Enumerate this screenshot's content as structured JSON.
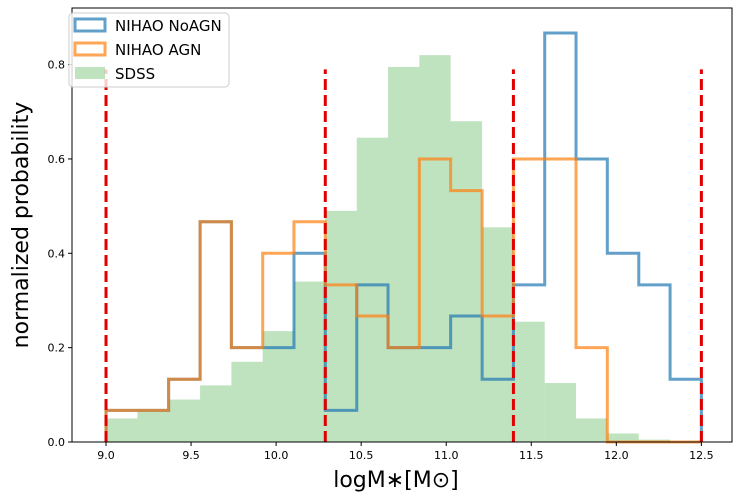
{
  "chart_data": {
    "type": "histogram",
    "xlabel": "logM∗[M⊙]",
    "ylabel": "normalized probability",
    "xlim": [
      8.8,
      12.68
    ],
    "ylim": [
      0,
      0.92
    ],
    "xticks": [
      9.0,
      9.5,
      10.0,
      10.5,
      11.0,
      11.5,
      12.0,
      12.5
    ],
    "xtick_labels": [
      "9.0",
      "9.5",
      "10.0",
      "10.5",
      "11.0",
      "11.5",
      "12.0",
      "12.5"
    ],
    "yticks": [
      0.0,
      0.2,
      0.4,
      0.6,
      0.8
    ],
    "ytick_labels": [
      "0.0",
      "0.2",
      "0.4",
      "0.6",
      "0.8"
    ],
    "legend_position": "top-left",
    "series": [
      {
        "name": "NIHAO NoAGN",
        "style": "step",
        "color": "#1f77b4",
        "edges": [
          9.0,
          9.184,
          9.368,
          9.553,
          9.737,
          9.921,
          10.105,
          10.289,
          10.474,
          10.658,
          10.842,
          11.026,
          11.211,
          11.395,
          11.579,
          11.763,
          11.947,
          12.132,
          12.316,
          12.5
        ],
        "values": [
          0.067,
          0.067,
          0.133,
          0.467,
          0.2,
          0.2,
          0.4,
          0.067,
          0.333,
          0.2,
          0.2,
          0.267,
          0.133,
          0.333,
          0.867,
          0.6,
          0.4,
          0.333,
          0.133
        ]
      },
      {
        "name": "NIHAO AGN",
        "style": "step",
        "color": "#ff7f0e",
        "edges": [
          9.0,
          9.184,
          9.368,
          9.553,
          9.737,
          9.921,
          10.105,
          10.289,
          10.474,
          10.658,
          10.842,
          11.026,
          11.211,
          11.395,
          11.579,
          11.763,
          11.947,
          12.132,
          12.316,
          12.5
        ],
        "values": [
          0.067,
          0.067,
          0.133,
          0.467,
          0.2,
          0.4,
          0.467,
          0.333,
          0.267,
          0.2,
          0.6,
          0.533,
          0.267,
          0.6,
          0.6,
          0.2,
          0.0,
          0.0,
          0.0
        ]
      },
      {
        "name": "SDSS",
        "style": "filled",
        "color": "#2ca02c",
        "edges": [
          9.0,
          9.184,
          9.368,
          9.553,
          9.737,
          9.921,
          10.105,
          10.289,
          10.474,
          10.658,
          10.842,
          11.026,
          11.211,
          11.395,
          11.579,
          11.763,
          11.947,
          12.132,
          12.316,
          12.5
        ],
        "values": [
          0.05,
          0.065,
          0.09,
          0.12,
          0.17,
          0.235,
          0.34,
          0.49,
          0.645,
          0.795,
          0.82,
          0.68,
          0.455,
          0.255,
          0.125,
          0.05,
          0.018,
          0.005,
          0.0
        ]
      }
    ],
    "vlines": {
      "x": [
        9.0,
        10.289,
        11.395,
        12.5
      ],
      "ymax": 0.79,
      "color": "#e00000",
      "style": "dashed"
    }
  }
}
